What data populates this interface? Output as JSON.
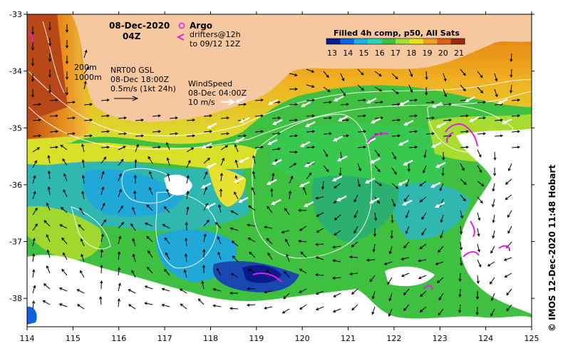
{
  "header": {
    "date": "08-Dec-2020",
    "time": "04Z"
  },
  "legend": {
    "argo": "Argo",
    "drifters_line1": "drifters@12h",
    "drifters_line2": "to 09/12 12Z",
    "argo_color": "#e040e0",
    "drifter_color": "#e020e0"
  },
  "isobaths": {
    "label_200": "200m",
    "label_1000": "1000m"
  },
  "currents": {
    "line1": "NRT00 GSL",
    "line2": "08-Dec 18:00Z",
    "line3": "0.5m/s (1kt 24h)"
  },
  "wind": {
    "line1": "WindSpeed",
    "line2": "08-Dec 04:00Z",
    "line3": "10 m/s"
  },
  "colorbar": {
    "title": "Filled 4h comp, p50, All Sats",
    "ticks": [
      "13",
      "14",
      "15",
      "16",
      "17",
      "18",
      "19",
      "20",
      "21"
    ],
    "colors": [
      "#0a1a8c",
      "#1060e0",
      "#20b0e0",
      "#30d0b0",
      "#40c040",
      "#a0e030",
      "#e8e020",
      "#f0a020",
      "#e06010",
      "#a02810"
    ]
  },
  "axes": {
    "x_ticks": [
      "114",
      "115",
      "116",
      "117",
      "118",
      "119",
      "120",
      "121",
      "122",
      "123",
      "124",
      "125"
    ],
    "y_ticks": [
      "-33",
      "-34",
      "-35",
      "-36",
      "-37",
      "-38"
    ],
    "xlim": [
      114,
      125
    ],
    "ylim": [
      -38.5,
      -33
    ]
  },
  "credit": "© IMOS 12-Dec-2020 11:48 Hobart",
  "colors": {
    "land": "#f5c8a0",
    "coast_warm": "#e8a020",
    "shelf": "#d8e020",
    "ocean_green": "#40c040",
    "ocean_teal": "#30c0a0",
    "cloud": "#ffffff"
  }
}
